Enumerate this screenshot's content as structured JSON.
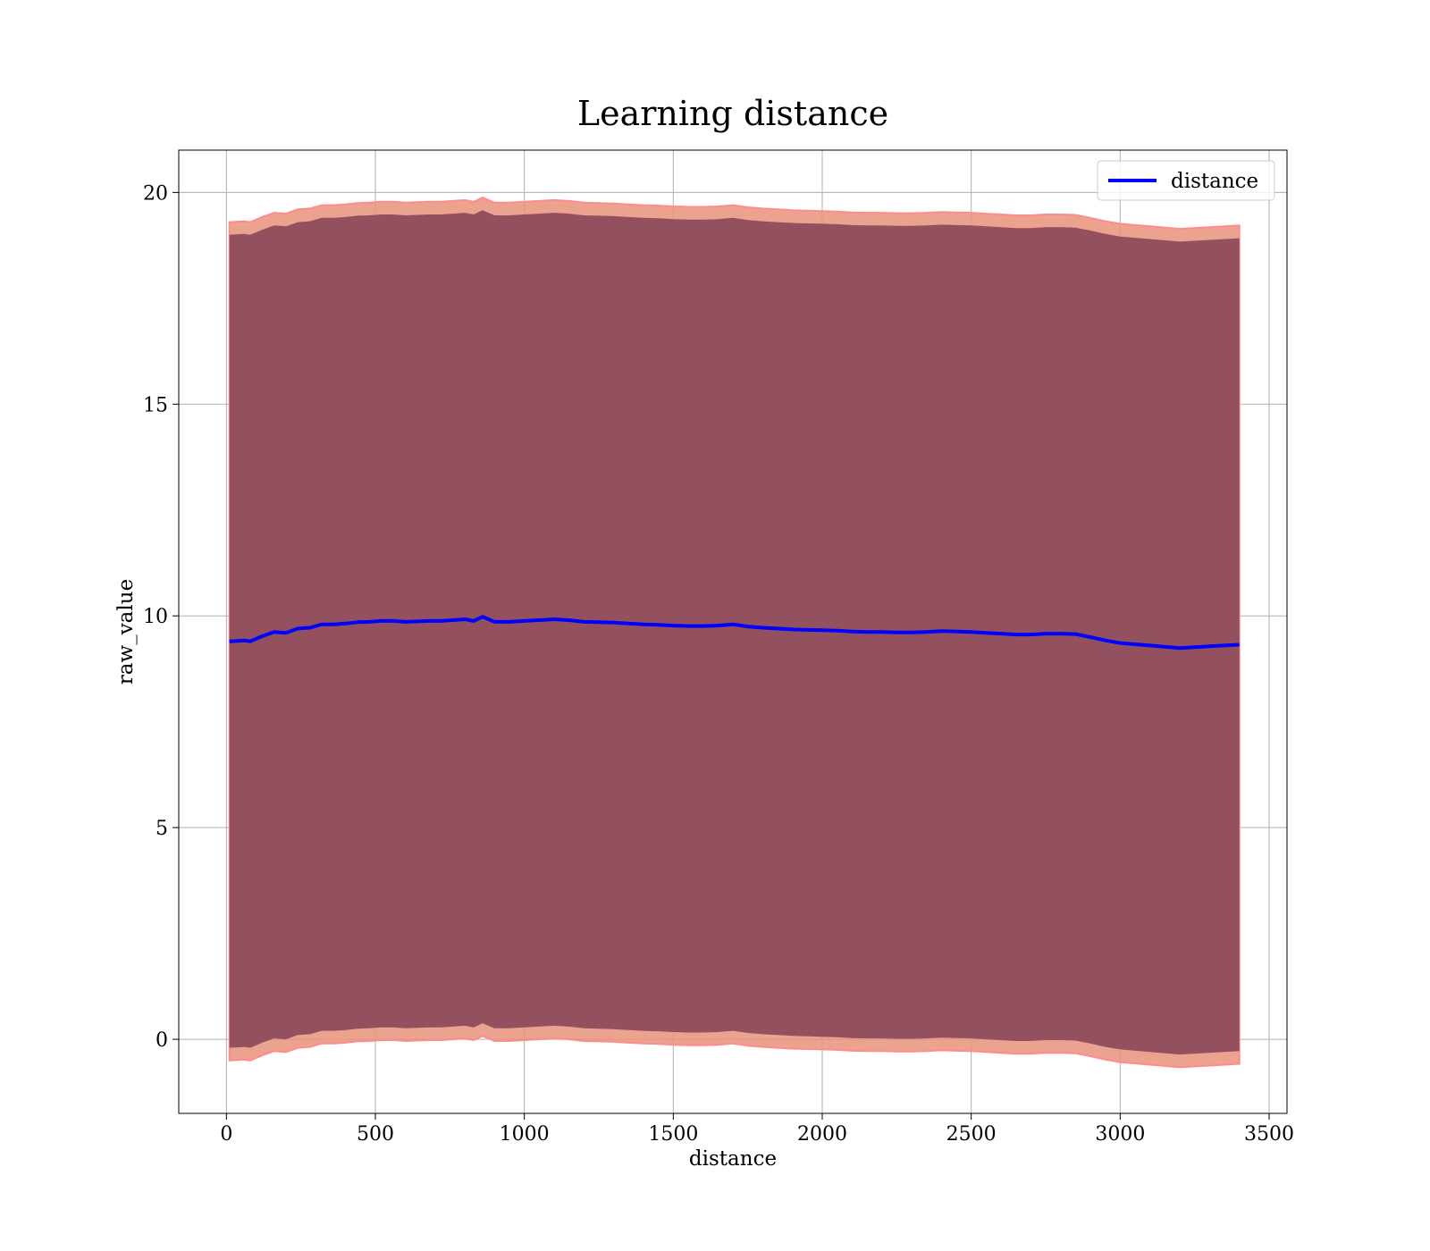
{
  "chart_data": {
    "type": "line",
    "title": "Learning distance",
    "xlabel": "distance",
    "ylabel": "raw_value",
    "xlim": [
      -160,
      3560
    ],
    "ylim": [
      -1.75,
      21
    ],
    "xticks": [
      0,
      500,
      1000,
      1500,
      2000,
      2500,
      3000,
      3500
    ],
    "yticks": [
      0,
      5,
      10,
      15,
      20
    ],
    "grid": true,
    "legend_position": "top-right",
    "series": [
      {
        "name": "distance",
        "color": "#0000ff",
        "x": [
          10,
          60,
          80,
          120,
          160,
          200,
          240,
          280,
          320,
          360,
          400,
          440,
          480,
          520,
          560,
          600,
          640,
          680,
          720,
          760,
          800,
          830,
          860,
          900,
          950,
          1000,
          1050,
          1100,
          1150,
          1200,
          1250,
          1300,
          1350,
          1400,
          1450,
          1500,
          1550,
          1600,
          1650,
          1700,
          1750,
          1800,
          1850,
          1900,
          1950,
          2000,
          2050,
          2100,
          2150,
          2200,
          2250,
          2300,
          2350,
          2400,
          2450,
          2500,
          2550,
          2600,
          2650,
          2700,
          2750,
          2800,
          2850,
          2900,
          2950,
          3000,
          3100,
          3200,
          3300,
          3400
        ],
        "y": [
          9.4,
          9.42,
          9.4,
          9.52,
          9.62,
          9.6,
          9.7,
          9.72,
          9.8,
          9.8,
          9.82,
          9.85,
          9.86,
          9.88,
          9.88,
          9.86,
          9.87,
          9.88,
          9.88,
          9.9,
          9.92,
          9.88,
          9.98,
          9.86,
          9.86,
          9.88,
          9.9,
          9.92,
          9.9,
          9.86,
          9.85,
          9.84,
          9.82,
          9.8,
          9.79,
          9.77,
          9.76,
          9.76,
          9.77,
          9.8,
          9.75,
          9.72,
          9.7,
          9.68,
          9.67,
          9.66,
          9.65,
          9.63,
          9.62,
          9.62,
          9.61,
          9.61,
          9.62,
          9.64,
          9.63,
          9.62,
          9.6,
          9.58,
          9.56,
          9.56,
          9.58,
          9.58,
          9.57,
          9.5,
          9.42,
          9.36,
          9.3,
          9.24,
          9.28,
          9.32
        ],
        "band_inner": 9.6,
        "band_outer": 9.9,
        "band_inner_color": "#8b4a5c",
        "band_outer_color": "#e8927a"
      }
    ]
  }
}
